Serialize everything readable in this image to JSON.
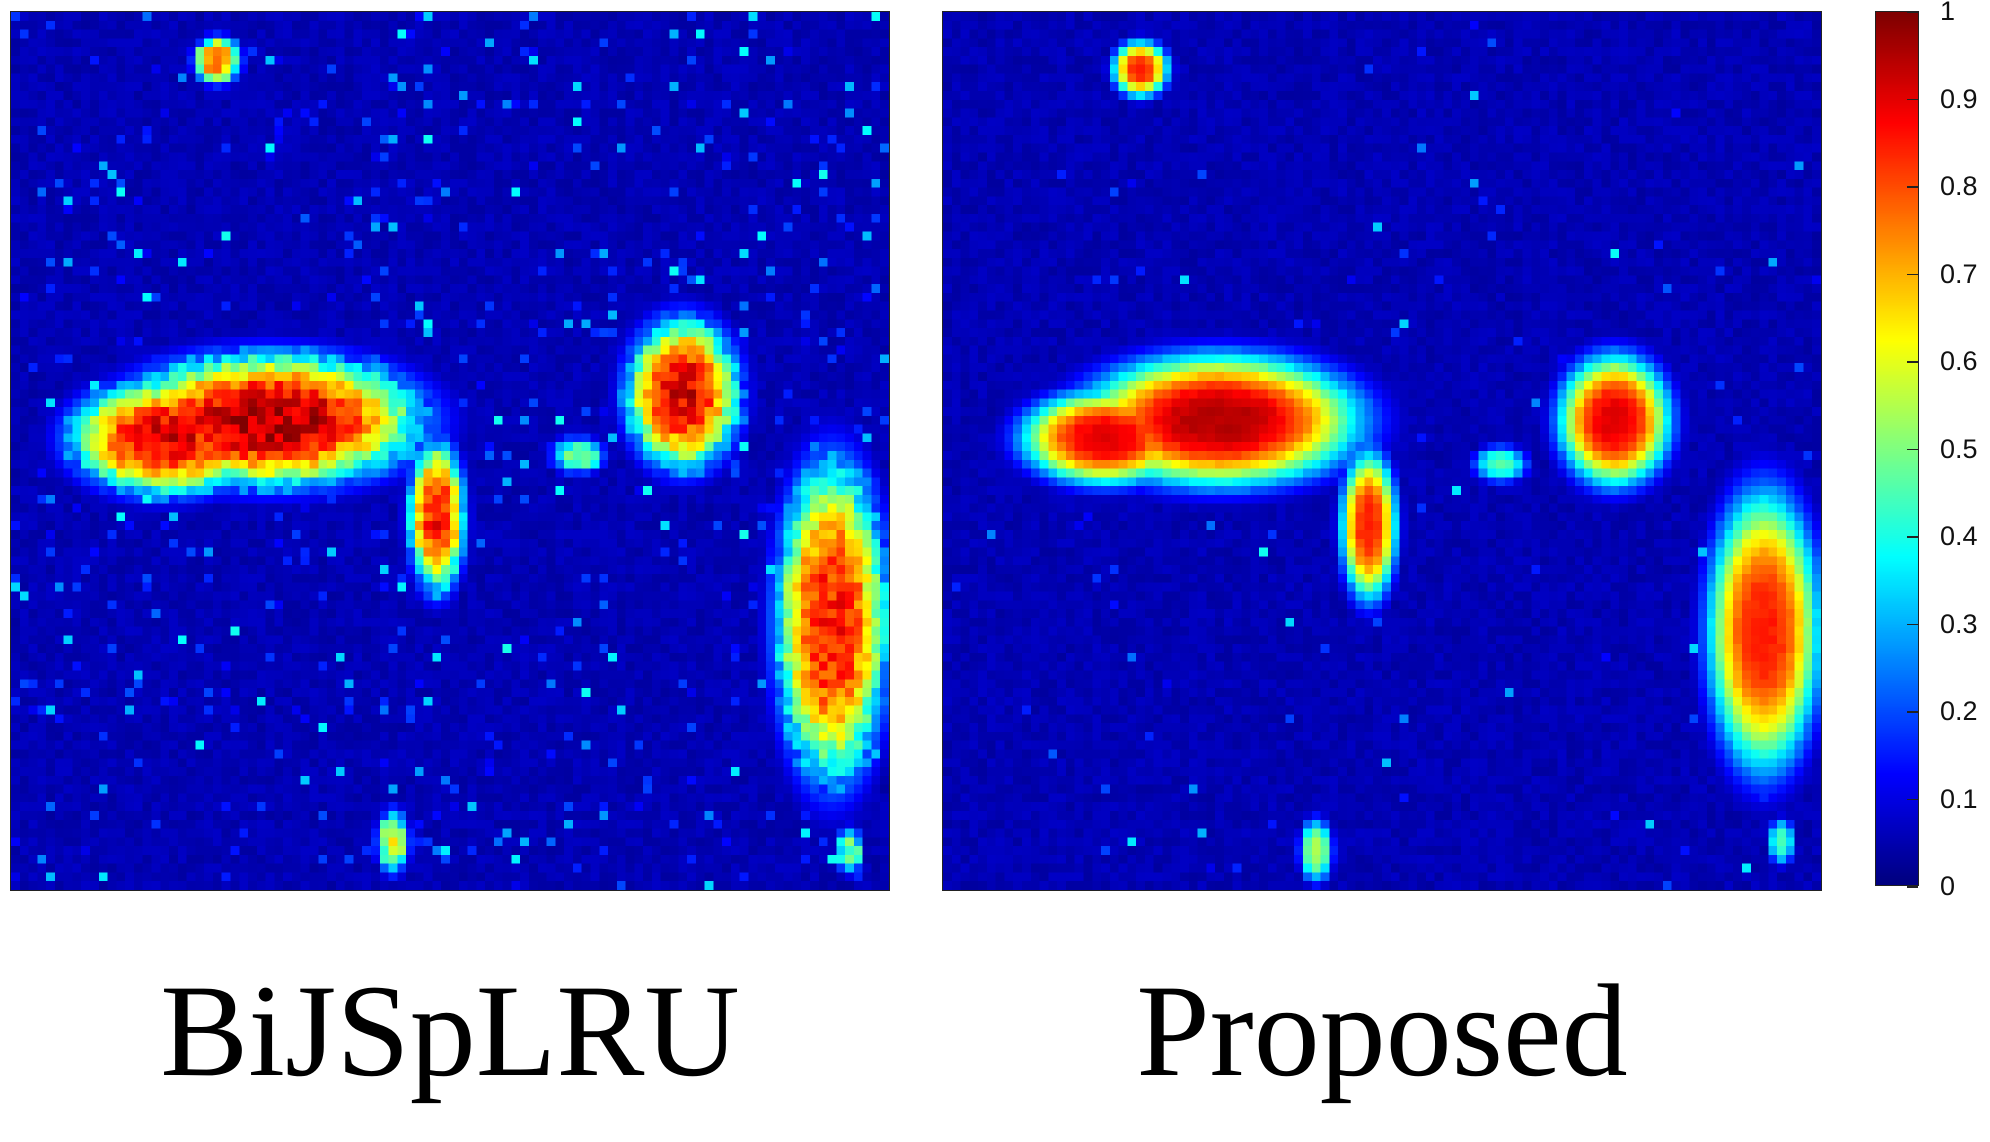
{
  "chart_data": [
    {
      "type": "heatmap",
      "title": "",
      "caption": "BiJSpLRU",
      "grid_size": [
        100,
        100
      ],
      "colormap": "jet",
      "value_range": [
        0,
        1
      ],
      "blobs": [
        {
          "cx": 29,
          "cy": 46,
          "rx": 16,
          "ry": 7,
          "value": 0.95
        },
        {
          "cx": 17,
          "cy": 48,
          "rx": 10,
          "ry": 6,
          "value": 0.9
        },
        {
          "cx": 48,
          "cy": 57,
          "rx": 3,
          "ry": 8,
          "value": 0.85
        },
        {
          "cx": 76,
          "cy": 43,
          "rx": 6,
          "ry": 8,
          "value": 0.9
        },
        {
          "cx": 93,
          "cy": 69,
          "rx": 6,
          "ry": 17,
          "value": 0.85
        },
        {
          "cx": 23,
          "cy": 5,
          "rx": 2.5,
          "ry": 2.5,
          "value": 0.8
        },
        {
          "cx": 43,
          "cy": 94,
          "rx": 1.8,
          "ry": 3.5,
          "value": 0.6
        },
        {
          "cx": 64,
          "cy": 50,
          "rx": 3,
          "ry": 2,
          "value": 0.5
        },
        {
          "cx": 95,
          "cy": 95,
          "rx": 1.5,
          "ry": 2.5,
          "value": 0.5
        }
      ],
      "noise_level": 0.45
    },
    {
      "type": "heatmap",
      "title": "",
      "caption": "Proposed",
      "grid_size": [
        100,
        100
      ],
      "colormap": "jet",
      "value_range": [
        0,
        1
      ],
      "blobs": [
        {
          "cx": 31,
          "cy": 46,
          "rx": 15,
          "ry": 7,
          "value": 0.95
        },
        {
          "cx": 18,
          "cy": 48,
          "rx": 9,
          "ry": 5,
          "value": 0.9
        },
        {
          "cx": 48,
          "cy": 58,
          "rx": 3,
          "ry": 8,
          "value": 0.85
        },
        {
          "cx": 76,
          "cy": 46,
          "rx": 6,
          "ry": 7,
          "value": 0.9
        },
        {
          "cx": 93,
          "cy": 70,
          "rx": 6,
          "ry": 15,
          "value": 0.85
        },
        {
          "cx": 22,
          "cy": 6,
          "rx": 3,
          "ry": 3,
          "value": 0.85
        },
        {
          "cx": 42,
          "cy": 95,
          "rx": 1.8,
          "ry": 3.5,
          "value": 0.55
        },
        {
          "cx": 63,
          "cy": 51,
          "rx": 3,
          "ry": 2,
          "value": 0.45
        },
        {
          "cx": 95,
          "cy": 94,
          "rx": 1.5,
          "ry": 2.5,
          "value": 0.45
        }
      ],
      "noise_level": 0.08
    }
  ],
  "colorbar": {
    "ticks": [
      "0",
      "0.1",
      "0.2",
      "0.3",
      "0.4",
      "0.5",
      "0.6",
      "0.7",
      "0.8",
      "0.9",
      "1"
    ],
    "range": [
      0,
      1
    ]
  }
}
